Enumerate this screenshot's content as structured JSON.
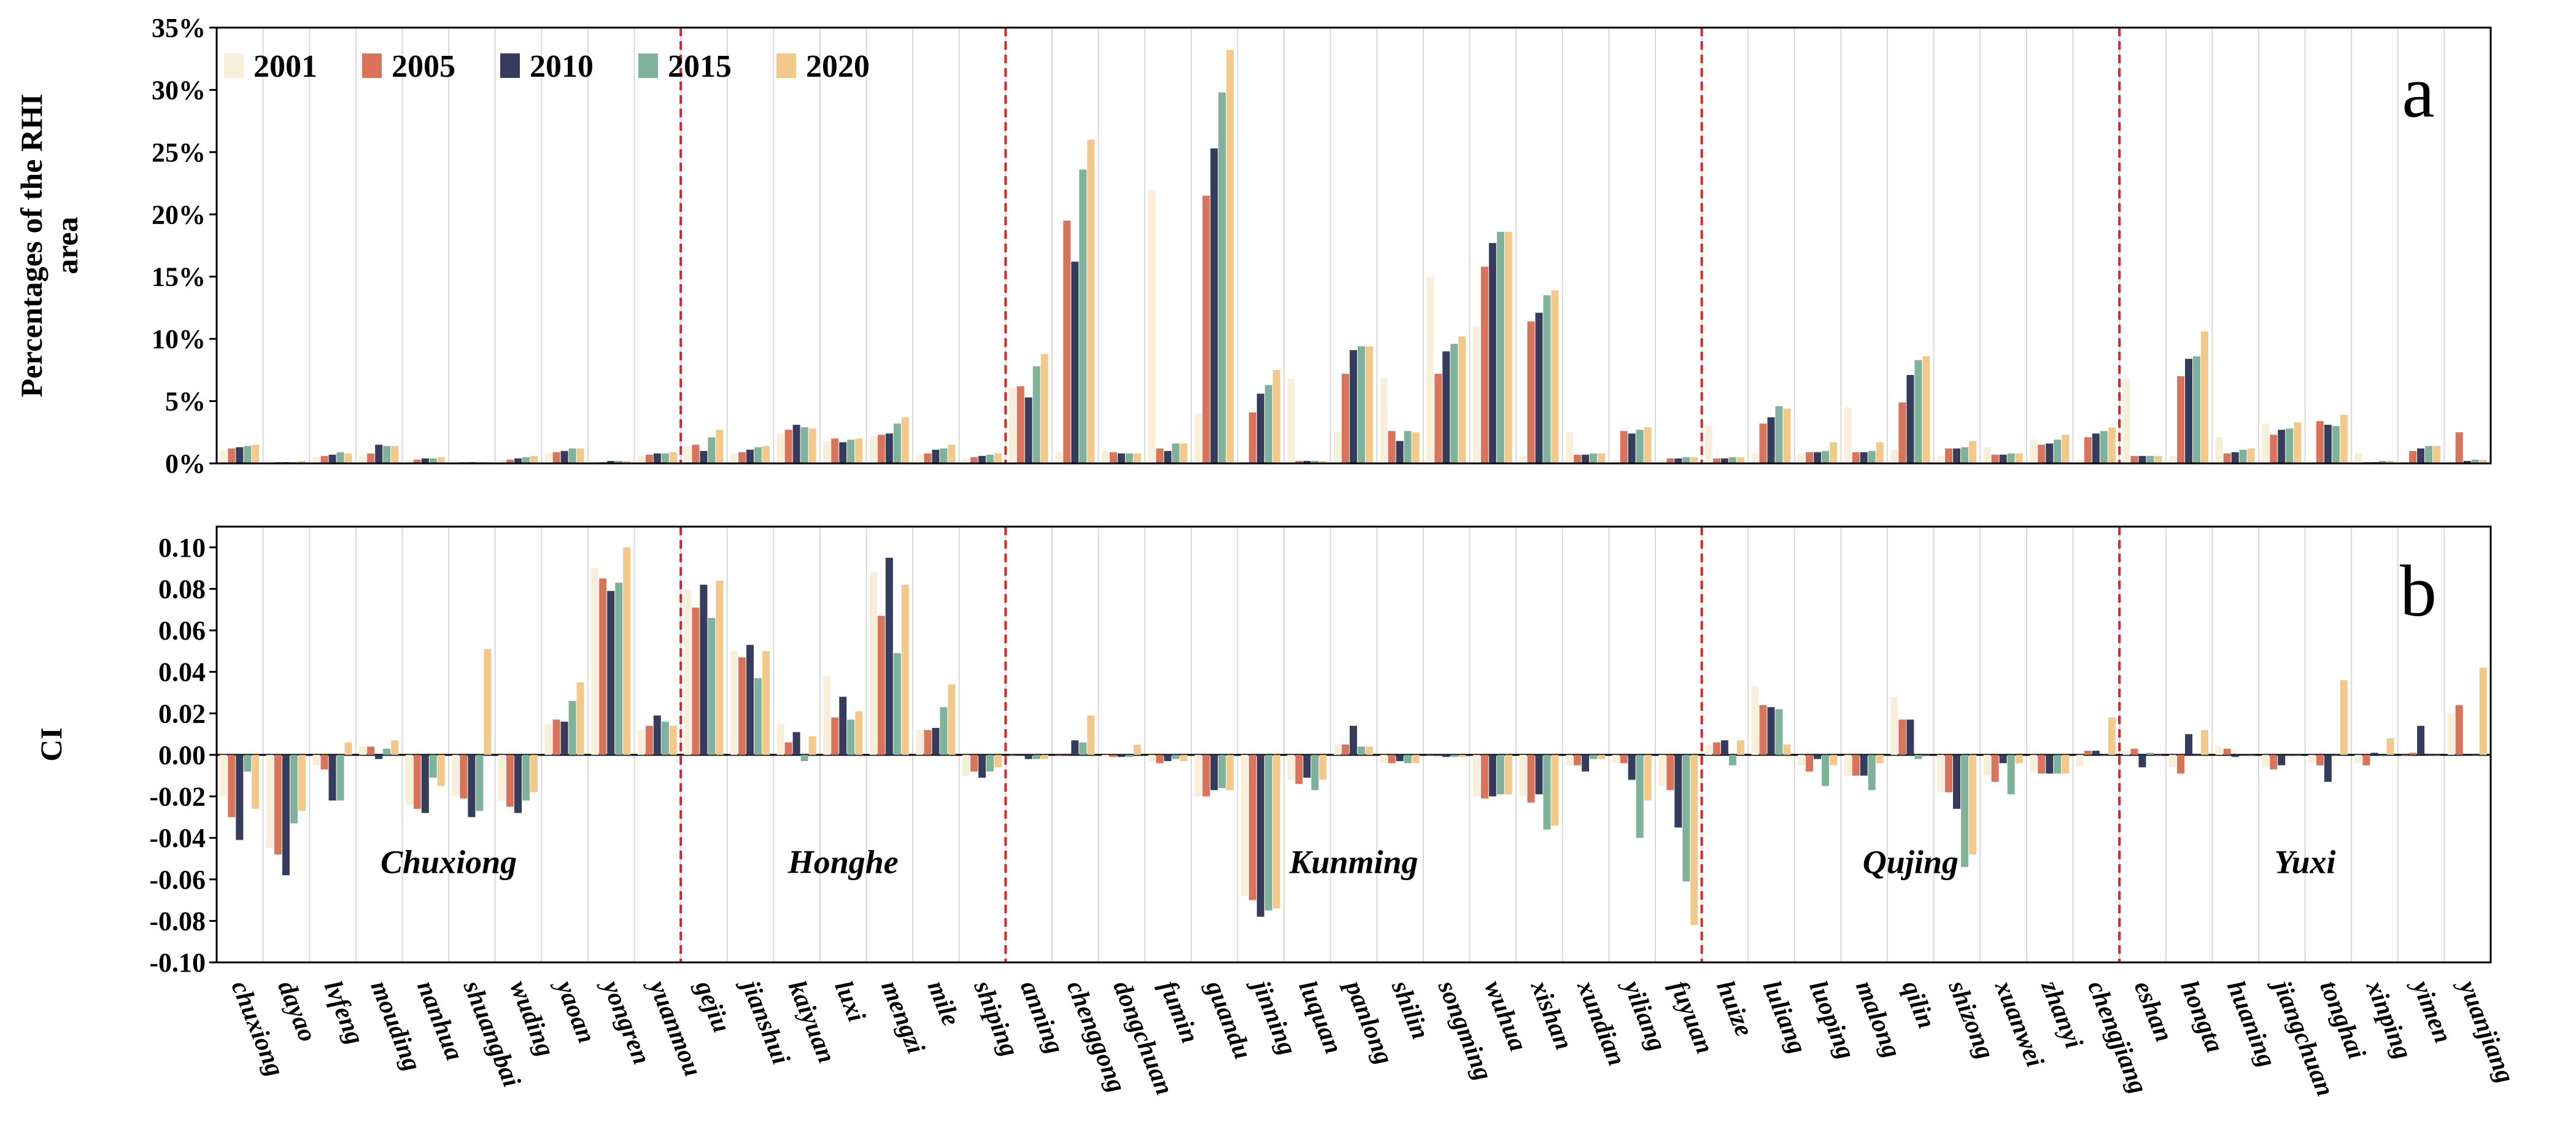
{
  "chart_data": [
    {
      "type": "bar",
      "panel_letter": "a",
      "ylabel": [
        "Percentages of the RHI",
        "area"
      ],
      "ylim": [
        0,
        35
      ],
      "yticks": [
        0,
        5,
        10,
        15,
        20,
        25,
        30,
        35
      ],
      "ytick_labels": [
        "0%",
        "5%",
        "10%",
        "15%",
        "20%",
        "25%",
        "30%",
        "35%"
      ],
      "grid": "vertical",
      "legend_position": "top-left",
      "categories": [
        "chuxiong",
        "dayao",
        "lvfeng",
        "mouding",
        "nanhua",
        "shuangbai",
        "wuding",
        "yaoan",
        "yongren",
        "yuanmou",
        "gejiu",
        "jianshui",
        "kaiyuan",
        "luxi",
        "mengzi",
        "mile",
        "shiping",
        "anning",
        "chenggong",
        "dongchuan",
        "fumin",
        "guandu",
        "jinning",
        "luquan",
        "panlong",
        "shilin",
        "songming",
        "wuhua",
        "xishan",
        "xundian",
        "yiliang",
        "fuyuan",
        "huize",
        "luliang",
        "luoping",
        "malong",
        "qilin",
        "shizong",
        "xuanwei",
        "zhanyi",
        "chengjiang",
        "eshan",
        "hongta",
        "huaning",
        "jiangchuan",
        "tonghai",
        "xinping",
        "yimen",
        "yuanjiang"
      ],
      "series": [
        {
          "name": "2001",
          "color": "#f7efd9",
          "values": [
            1.0,
            0.1,
            0.5,
            0.6,
            0.3,
            0.1,
            0.3,
            0.8,
            0.1,
            0.6,
            1.4,
            0.8,
            2.4,
            1.8,
            2.2,
            0.7,
            0.4,
            6.1,
            0.9,
            1.0,
            22.0,
            4.0,
            0.1,
            6.8,
            2.5,
            6.8,
            15.0,
            11.0,
            0.6,
            2.5,
            0.3,
            0.3,
            3.0,
            0.8,
            0.8,
            4.5,
            1.1,
            0.6,
            1.3,
            1.9,
            0.3,
            6.8,
            0.6,
            2.1,
            3.2,
            0.1,
            0.8,
            0.2,
            0.2
          ]
        },
        {
          "name": "2005",
          "color": "#d9735a",
          "values": [
            1.2,
            0.1,
            0.6,
            0.8,
            0.3,
            0.1,
            0.3,
            0.9,
            0.1,
            0.7,
            1.5,
            0.9,
            2.7,
            2.0,
            2.3,
            0.8,
            0.5,
            6.2,
            19.5,
            0.9,
            1.2,
            21.5,
            4.1,
            0.2,
            7.2,
            2.6,
            7.2,
            15.8,
            11.4,
            0.7,
            2.6,
            0.4,
            0.4,
            3.2,
            0.9,
            0.9,
            4.9,
            1.2,
            0.7,
            1.5,
            2.1,
            0.6,
            7.0,
            0.8,
            2.3,
            3.4,
            0.1,
            1.0,
            2.5
          ]
        },
        {
          "name": "2010",
          "color": "#353c5c",
          "values": [
            1.3,
            0.1,
            0.7,
            1.5,
            0.4,
            0.1,
            0.4,
            1.0,
            0.2,
            0.8,
            1.0,
            1.1,
            3.1,
            1.7,
            2.4,
            1.1,
            0.6,
            5.3,
            16.2,
            0.8,
            1.0,
            25.3,
            5.6,
            0.2,
            9.1,
            1.8,
            9.0,
            17.7,
            12.1,
            0.7,
            2.4,
            0.4,
            0.4,
            3.7,
            0.9,
            0.9,
            7.1,
            1.2,
            0.7,
            1.6,
            2.4,
            0.6,
            8.4,
            0.9,
            2.7,
            3.1,
            0.1,
            1.2,
            0.2
          ]
        },
        {
          "name": "2015",
          "color": "#7fb29b",
          "values": [
            1.4,
            0.1,
            0.9,
            1.4,
            0.4,
            0.1,
            0.5,
            1.2,
            0.2,
            0.8,
            2.1,
            1.3,
            2.9,
            1.9,
            3.2,
            1.2,
            0.7,
            7.8,
            23.6,
            0.8,
            1.6,
            29.8,
            6.3,
            0.2,
            9.4,
            2.6,
            9.6,
            18.6,
            13.5,
            0.8,
            2.7,
            0.5,
            0.5,
            4.6,
            1.0,
            1.0,
            8.3,
            1.3,
            0.8,
            1.9,
            2.6,
            0.6,
            8.6,
            1.1,
            2.8,
            3.0,
            0.2,
            1.4,
            0.3
          ]
        },
        {
          "name": "2020",
          "color": "#f3c98b",
          "values": [
            1.5,
            0.2,
            0.8,
            1.4,
            0.5,
            0.1,
            0.6,
            1.2,
            0.2,
            0.9,
            2.7,
            1.4,
            2.8,
            2.0,
            3.7,
            1.5,
            0.8,
            8.8,
            26.0,
            0.8,
            1.6,
            33.2,
            7.5,
            0.2,
            9.4,
            2.5,
            10.2,
            18.6,
            13.9,
            0.8,
            2.9,
            0.5,
            0.5,
            4.4,
            1.7,
            1.7,
            8.6,
            1.8,
            0.8,
            2.3,
            2.9,
            0.6,
            10.6,
            1.2,
            3.3,
            3.9,
            0.2,
            1.4,
            0.3
          ]
        }
      ]
    },
    {
      "type": "bar",
      "panel_letter": "b",
      "ylabel": "CI",
      "ylim": [
        -0.1,
        0.11
      ],
      "yticks": [
        -0.1,
        -0.08,
        -0.06,
        -0.04,
        -0.02,
        0.0,
        0.02,
        0.04,
        0.06,
        0.08,
        0.1
      ],
      "ytick_labels": [
        "-0.10",
        "-0.08",
        "-0.06",
        "-0.04",
        "-0.02",
        "0.00",
        "0.02",
        "0.04",
        "0.06",
        "0.08",
        "0.10"
      ],
      "grid": "vertical",
      "categories": [
        "chuxiong",
        "dayao",
        "lvfeng",
        "mouding",
        "nanhua",
        "shuangbai",
        "wuding",
        "yaoan",
        "yongren",
        "yuanmou",
        "gejiu",
        "jianshui",
        "kaiyuan",
        "luxi",
        "mengzi",
        "mile",
        "shiping",
        "anning",
        "chenggong",
        "dongchuan",
        "fumin",
        "guandu",
        "jinning",
        "luquan",
        "panlong",
        "shilin",
        "songming",
        "wuhua",
        "xishan",
        "xundian",
        "yiliang",
        "fuyuan",
        "huize",
        "luliang",
        "luoping",
        "malong",
        "qilin",
        "shizong",
        "xuanwei",
        "zhanyi",
        "chengjiang",
        "eshan",
        "hongta",
        "huaning",
        "jiangchuan",
        "tonghai",
        "xinping",
        "yimen",
        "yuanjiang"
      ],
      "series": [
        {
          "name": "2001",
          "color": "#f7efd9",
          "values": [
            -0.02,
            -0.045,
            -0.005,
            0.004,
            -0.024,
            -0.02,
            -0.022,
            0.015,
            0.09,
            0.012,
            0.08,
            0.05,
            0.015,
            0.038,
            0.088,
            0.012,
            -0.01,
            0.0,
            0.0,
            -0.001,
            -0.003,
            -0.02,
            -0.068,
            -0.012,
            0.005,
            -0.004,
            0.0,
            -0.02,
            -0.02,
            -0.005,
            -0.004,
            -0.015,
            0.005,
            0.033,
            -0.005,
            -0.01,
            0.028,
            -0.018,
            -0.01,
            -0.008,
            -0.006,
            0.002,
            -0.006,
            0.004,
            -0.006,
            -0.004,
            -0.004,
            0.0,
            0.02
          ]
        },
        {
          "name": "2005",
          "color": "#d9735a",
          "values": [
            -0.03,
            -0.048,
            -0.007,
            0.004,
            -0.026,
            -0.021,
            -0.025,
            0.017,
            0.085,
            0.014,
            0.071,
            0.047,
            0.006,
            0.018,
            0.067,
            0.012,
            -0.008,
            0.0,
            0.0,
            -0.001,
            -0.004,
            -0.02,
            -0.07,
            -0.014,
            0.005,
            -0.004,
            0.0,
            -0.021,
            -0.023,
            -0.005,
            -0.004,
            -0.017,
            0.006,
            0.024,
            -0.008,
            -0.01,
            0.017,
            -0.018,
            -0.013,
            -0.009,
            0.002,
            0.003,
            -0.009,
            0.003,
            -0.007,
            -0.005,
            -0.005,
            0.001,
            0.024
          ]
        },
        {
          "name": "2010",
          "color": "#353c5c",
          "values": [
            -0.041,
            -0.058,
            -0.022,
            -0.002,
            -0.028,
            -0.03,
            -0.028,
            0.016,
            0.079,
            0.019,
            0.082,
            0.053,
            0.011,
            0.028,
            0.095,
            0.013,
            -0.011,
            -0.002,
            0.007,
            -0.001,
            -0.003,
            -0.017,
            -0.078,
            -0.011,
            0.014,
            -0.003,
            -0.001,
            -0.02,
            -0.019,
            -0.008,
            -0.012,
            -0.035,
            0.007,
            0.023,
            -0.002,
            -0.01,
            0.017,
            -0.026,
            -0.004,
            -0.009,
            0.002,
            -0.006,
            0.01,
            -0.001,
            -0.005,
            -0.013,
            0.001,
            0.014,
            0.0
          ]
        },
        {
          "name": "2015",
          "color": "#7fb29b",
          "values": [
            -0.008,
            -0.033,
            -0.022,
            0.003,
            -0.011,
            -0.027,
            -0.022,
            0.026,
            0.083,
            0.016,
            0.066,
            0.037,
            -0.003,
            0.017,
            0.049,
            0.023,
            -0.008,
            -0.002,
            0.006,
            -0.001,
            -0.002,
            -0.016,
            -0.075,
            -0.017,
            0.004,
            -0.004,
            -0.001,
            -0.019,
            -0.036,
            -0.002,
            -0.04,
            -0.061,
            -0.005,
            0.022,
            -0.015,
            -0.017,
            -0.002,
            -0.054,
            -0.019,
            -0.009,
            0.0,
            0.001,
            0.0,
            0.0,
            0.0,
            0.0,
            0.0,
            0.0,
            0.0
          ]
        },
        {
          "name": "2020",
          "color": "#f3c98b",
          "values": [
            -0.026,
            -0.027,
            0.006,
            0.007,
            -0.015,
            0.051,
            -0.018,
            0.035,
            0.1,
            0.014,
            0.084,
            0.05,
            0.009,
            0.021,
            0.082,
            0.034,
            -0.006,
            -0.002,
            0.019,
            0.005,
            -0.003,
            -0.017,
            -0.074,
            -0.012,
            0.004,
            -0.004,
            -0.001,
            -0.019,
            -0.034,
            -0.002,
            -0.022,
            -0.082,
            0.007,
            0.005,
            -0.005,
            -0.004,
            0.0,
            -0.048,
            -0.004,
            -0.009,
            0.018,
            0.0,
            0.012,
            0.0,
            0.0,
            0.036,
            0.008,
            0.0,
            0.042
          ]
        }
      ]
    }
  ],
  "city_groups": [
    {
      "name": "Chuxiong",
      "start": 0,
      "end": 9
    },
    {
      "name": "Honghe",
      "start": 10,
      "end": 16
    },
    {
      "name": "Kunming",
      "start": 17,
      "end": 31
    },
    {
      "name": "Qujing",
      "start": 32,
      "end": 40
    },
    {
      "name": "Yuxi",
      "start": 41,
      "end": 48
    }
  ],
  "group_divider_color": "#d62728"
}
